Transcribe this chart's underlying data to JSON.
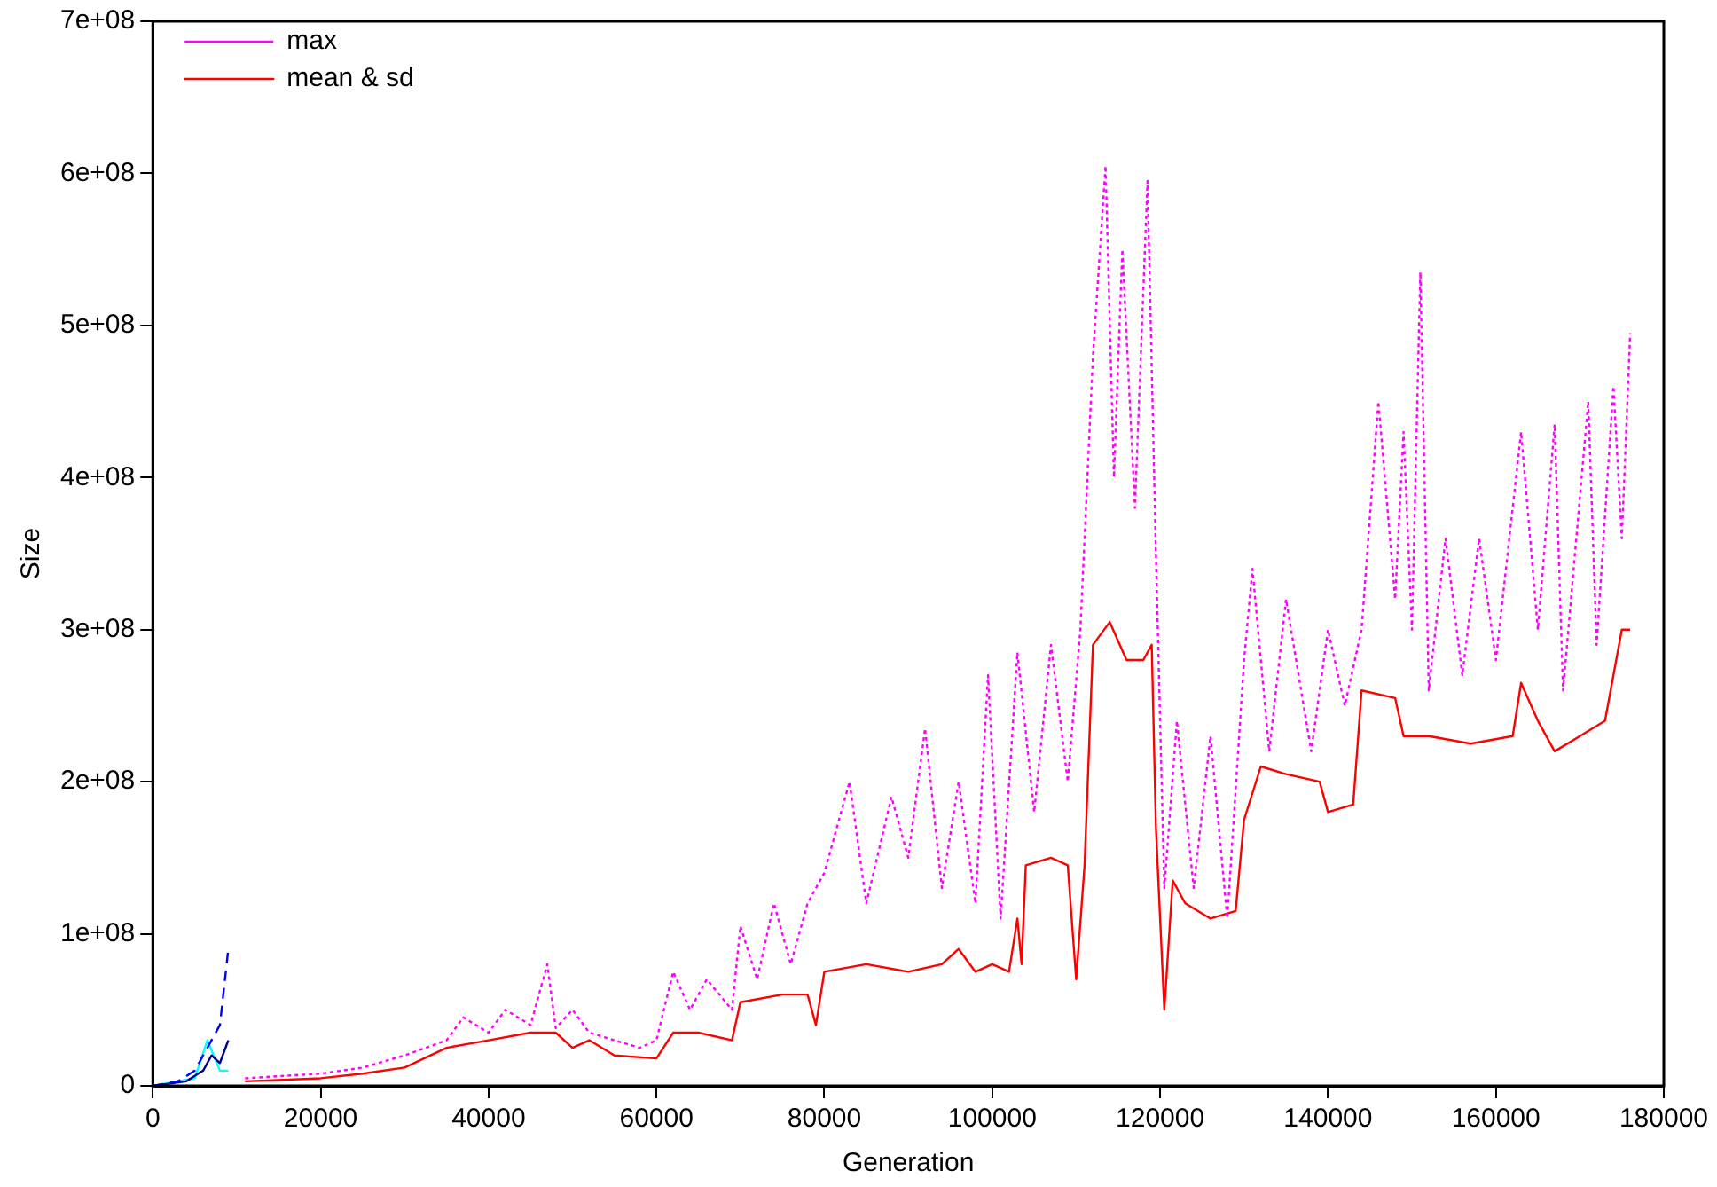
{
  "chart_data": {
    "type": "line",
    "xlabel": "Generation",
    "ylabel": "Size",
    "legend": "top left",
    "xlim": [
      0,
      180000
    ],
    "ylim": [
      0,
      700000000
    ],
    "xticks": [
      0,
      20000,
      40000,
      60000,
      80000,
      100000,
      120000,
      140000,
      160000,
      180000
    ],
    "yticks": [
      0,
      {
        "value": 100000000,
        "label": "1e+08"
      },
      {
        "value": 200000000,
        "label": "2e+08"
      },
      {
        "value": 300000000,
        "label": "3e+08"
      },
      {
        "value": 400000000,
        "label": "4e+08"
      },
      {
        "value": 500000000,
        "label": "5e+08"
      },
      {
        "value": 600000000,
        "label": "6e+08"
      },
      {
        "value": 700000000,
        "label": "7e+08"
      }
    ],
    "series": [
      {
        "name": "max",
        "color": "#ff00ff",
        "line_style": "dotted",
        "x": [
          11000,
          20000,
          25000,
          30000,
          35000,
          37000,
          40000,
          42000,
          45000,
          47000,
          48000,
          50000,
          52000,
          55000,
          58000,
          60000,
          62000,
          64000,
          66000,
          69000,
          70000,
          72000,
          74000,
          76000,
          78000,
          80000,
          83000,
          85000,
          88000,
          90000,
          92000,
          94000,
          96000,
          98000,
          99500,
          101000,
          103000,
          105000,
          107000,
          109000,
          110500,
          112000,
          113500,
          114500,
          115500,
          117000,
          118500,
          119500,
          120500,
          122000,
          124000,
          126000,
          128000,
          130000,
          131000,
          133000,
          135000,
          138000,
          140000,
          142000,
          144000,
          146000,
          148000,
          149000,
          150000,
          151000,
          152000,
          154000,
          156000,
          158000,
          160000,
          163000,
          165000,
          167000,
          168000,
          171000,
          172000,
          174000,
          175000,
          176000
        ],
        "values": [
          5000000,
          8000000,
          12000000,
          20000000,
          30000000,
          45000000,
          35000000,
          50000000,
          40000000,
          80000000,
          38000000,
          50000000,
          35000000,
          30000000,
          25000000,
          30000000,
          75000000,
          50000000,
          70000000,
          50000000,
          105000000,
          70000000,
          120000000,
          80000000,
          120000000,
          140000000,
          200000000,
          120000000,
          190000000,
          150000000,
          235000000,
          130000000,
          200000000,
          120000000,
          270000000,
          110000000,
          285000000,
          180000000,
          290000000,
          200000000,
          300000000,
          480000000,
          605000000,
          400000000,
          550000000,
          380000000,
          595000000,
          350000000,
          130000000,
          240000000,
          130000000,
          230000000,
          110000000,
          280000000,
          340000000,
          220000000,
          320000000,
          220000000,
          300000000,
          250000000,
          300000000,
          450000000,
          320000000,
          430000000,
          300000000,
          535000000,
          260000000,
          360000000,
          270000000,
          360000000,
          280000000,
          430000000,
          300000000,
          435000000,
          260000000,
          450000000,
          290000000,
          460000000,
          360000000,
          495000000
        ]
      },
      {
        "name": "mean & sd",
        "color": "#ff0000",
        "line_style": "solid",
        "x": [
          11000,
          20000,
          25000,
          30000,
          35000,
          40000,
          45000,
          48000,
          50000,
          52000,
          55000,
          60000,
          62000,
          65000,
          69000,
          70000,
          75000,
          78000,
          79000,
          80000,
          85000,
          90000,
          94000,
          96000,
          98000,
          100000,
          102000,
          103000,
          103500,
          104000,
          107000,
          109000,
          110000,
          111000,
          112000,
          114000,
          116000,
          118000,
          119000,
          119500,
          120500,
          121500,
          123000,
          126000,
          129000,
          130000,
          132000,
          135000,
          139000,
          140000,
          143000,
          144000,
          148000,
          149000,
          152000,
          157000,
          162000,
          163000,
          165000,
          167000,
          170000,
          173000,
          175000,
          176000
        ],
        "values": [
          3000000,
          5000000,
          8000000,
          12000000,
          25000000,
          30000000,
          35000000,
          35000000,
          25000000,
          30000000,
          20000000,
          18000000,
          35000000,
          35000000,
          30000000,
          55000000,
          60000000,
          60000000,
          40000000,
          75000000,
          80000000,
          75000000,
          80000000,
          90000000,
          75000000,
          80000000,
          75000000,
          110000000,
          80000000,
          145000000,
          150000000,
          145000000,
          70000000,
          145000000,
          290000000,
          305000000,
          280000000,
          280000000,
          290000000,
          170000000,
          50000000,
          135000000,
          120000000,
          110000000,
          115000000,
          175000000,
          210000000,
          205000000,
          200000000,
          180000000,
          185000000,
          260000000,
          255000000,
          230000000,
          230000000,
          225000000,
          230000000,
          265000000,
          240000000,
          220000000,
          230000000,
          240000000,
          300000000,
          300000000
        ]
      },
      {
        "color": "#0000ff",
        "line_style": "dashed",
        "x": [
          0,
          3000,
          5000,
          7000,
          8000,
          9000
        ],
        "values": [
          0,
          3000000,
          10000000,
          30000000,
          40000000,
          90000000
        ]
      },
      {
        "color": "#00008b",
        "line_style": "solid",
        "x": [
          0,
          4000,
          6000,
          7000,
          8000,
          9000
        ],
        "values": [
          0,
          3000000,
          10000000,
          20000000,
          15000000,
          30000000
        ]
      },
      {
        "color": "#00ffff",
        "line_style": "solid",
        "x": [
          0,
          5000,
          6500,
          8000,
          9000
        ],
        "values": [
          0,
          5000000,
          30000000,
          10000000,
          10000000
        ]
      }
    ]
  }
}
